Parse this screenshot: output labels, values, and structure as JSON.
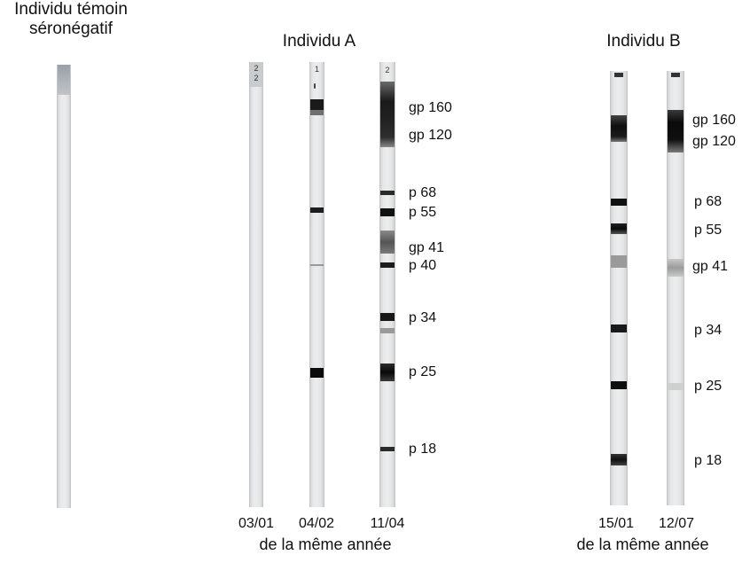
{
  "control": {
    "title_line1": "Individu témoin",
    "title_line2": "séronégatif"
  },
  "individual_a": {
    "title": "Individu A",
    "dates": [
      "03/01",
      "04/02",
      "11/04"
    ],
    "caption": "de la même année",
    "strip_marks": [
      "2",
      "2",
      "1",
      "2"
    ],
    "bands": [
      "gp 160",
      "gp 120",
      "p 68",
      "p 55",
      "gp 41",
      "p 40",
      "p 34",
      "p 25",
      "p 18"
    ]
  },
  "individual_b": {
    "title": "Individu B",
    "dates": [
      "15/01",
      "12/07"
    ],
    "caption": "de la même année",
    "bands": [
      "gp 160",
      "gp 120",
      "p 68",
      "p 55",
      "gp 41",
      "p 34",
      "p 25",
      "p 18"
    ]
  }
}
